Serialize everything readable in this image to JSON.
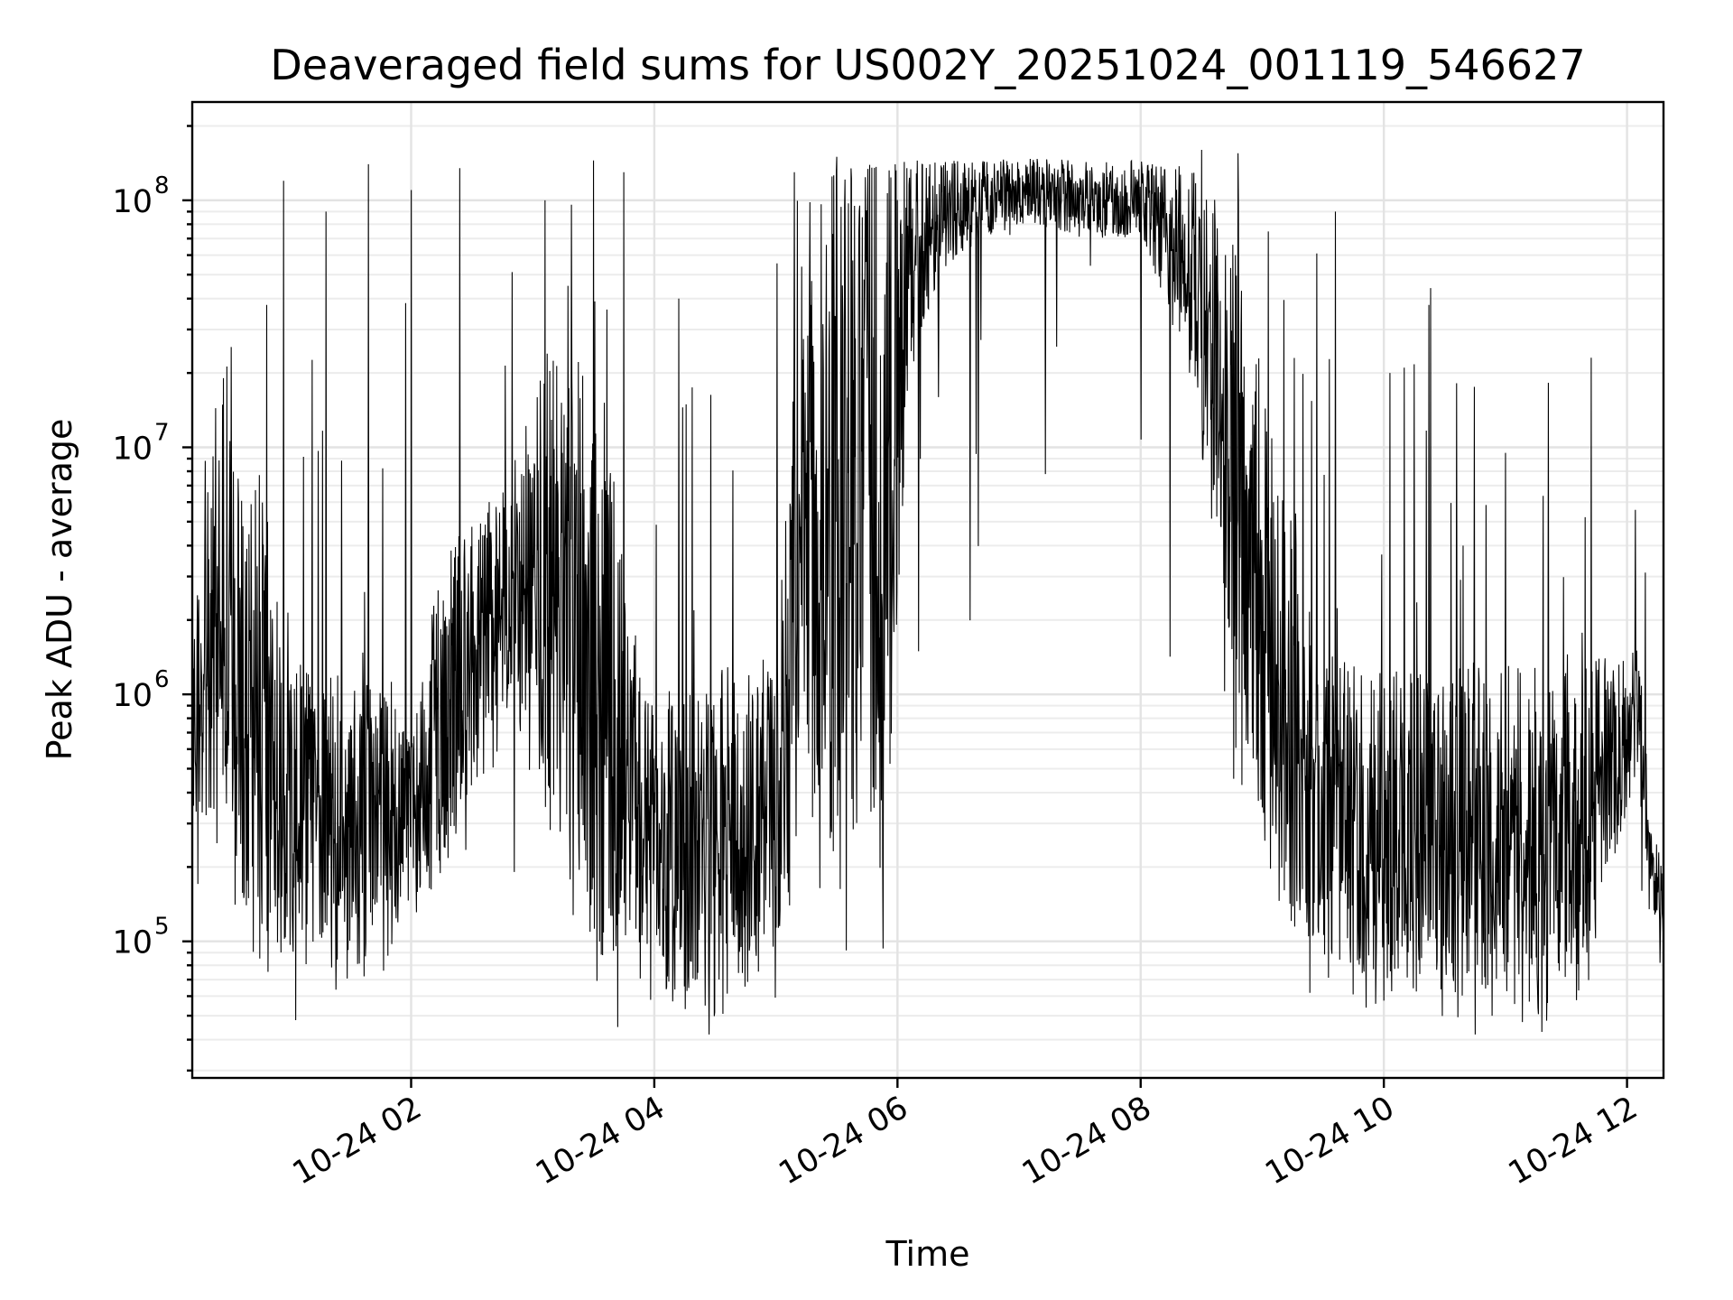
{
  "chart_data": {
    "type": "line",
    "title": "Deaveraged field sums for US002Y_20251024_001119_546627",
    "xlabel": "Time",
    "ylabel": "Peak ADU - average",
    "yscale": "log",
    "ylim": [
      28000,
      250000000
    ],
    "xlim_hours": [
      0.2,
      12.3
    ],
    "x_ticks": [
      {
        "hour": 2,
        "label": "10-24 02"
      },
      {
        "hour": 4,
        "label": "10-24 04"
      },
      {
        "hour": 6,
        "label": "10-24 06"
      },
      {
        "hour": 8,
        "label": "10-24 08"
      },
      {
        "hour": 10,
        "label": "10-24 10"
      },
      {
        "hour": 12,
        "label": "10-24 12"
      }
    ],
    "y_ticks": [
      {
        "value": 100000,
        "base": "10",
        "exp": "5"
      },
      {
        "value": 1000000,
        "base": "10",
        "exp": "6"
      },
      {
        "value": 10000000,
        "base": "10",
        "exp": "7"
      },
      {
        "value": 100000000,
        "base": "10",
        "exp": "8"
      }
    ],
    "grid": true,
    "series": [
      {
        "name": "deaveraged field sum",
        "color": "#000000",
        "envelope_hours": [
          0.2,
          0.4,
          0.7,
          1.0,
          1.3,
          1.6,
          2.0,
          2.4,
          2.8,
          3.2,
          3.6,
          3.9,
          4.2,
          4.6,
          5.0,
          5.2,
          5.5,
          5.9,
          6.1,
          6.5,
          7.0,
          7.5,
          8.0,
          8.4,
          8.8,
          9.1,
          9.5,
          10.0,
          10.5,
          11.0,
          11.5,
          12.0,
          12.1,
          12.2,
          12.3
        ],
        "envelope_low": [
          350000,
          250000,
          90000,
          85000,
          75000,
          65000,
          110000,
          250000,
          900000,
          200000,
          80000,
          90000,
          60000,
          55000,
          80000,
          300000,
          150000,
          200000,
          20000000,
          60000000,
          80000000,
          70000000,
          70000000,
          20000000,
          1000000,
          150000,
          80000,
          70000,
          60000,
          55000,
          55000,
          300000,
          300000,
          150000,
          80000
        ],
        "envelope_high": [
          1500000,
          18000000,
          12000000,
          1500000,
          1200000,
          1200000,
          1200000,
          5000000,
          7000000,
          40000000,
          15000000,
          1200000,
          1000000,
          1300000,
          1500000,
          50000000,
          140000000,
          150000000,
          150000000,
          145000000,
          148000000,
          148000000,
          145000000,
          140000000,
          80000000,
          10000000,
          1500000,
          1300000,
          1300000,
          1400000,
          1300000,
          1500000,
          1600000,
          300000,
          200000
        ],
        "spikes": [
          [
            0.95,
            120000000
          ],
          [
            1.3,
            90000000
          ],
          [
            1.65,
            140000000
          ],
          [
            2.0,
            110000000
          ],
          [
            2.4,
            135000000
          ],
          [
            3.1,
            100000000
          ],
          [
            3.5,
            145000000
          ],
          [
            3.75,
            130000000
          ],
          [
            4.2,
            40000000
          ],
          [
            5.15,
            130000000
          ],
          [
            5.5,
            150000000
          ],
          [
            8.5,
            160000000
          ],
          [
            8.8,
            155000000
          ],
          [
            9.6,
            90000000
          ],
          [
            10.05,
            20000000
          ],
          [
            10.65,
            4000000
          ],
          [
            11.0,
            9500000
          ],
          [
            1.05,
            48000
          ],
          [
            3.7,
            45000
          ],
          [
            4.45,
            42000
          ],
          [
            10.75,
            42000
          ],
          [
            11.3,
            43000
          ]
        ]
      }
    ]
  }
}
